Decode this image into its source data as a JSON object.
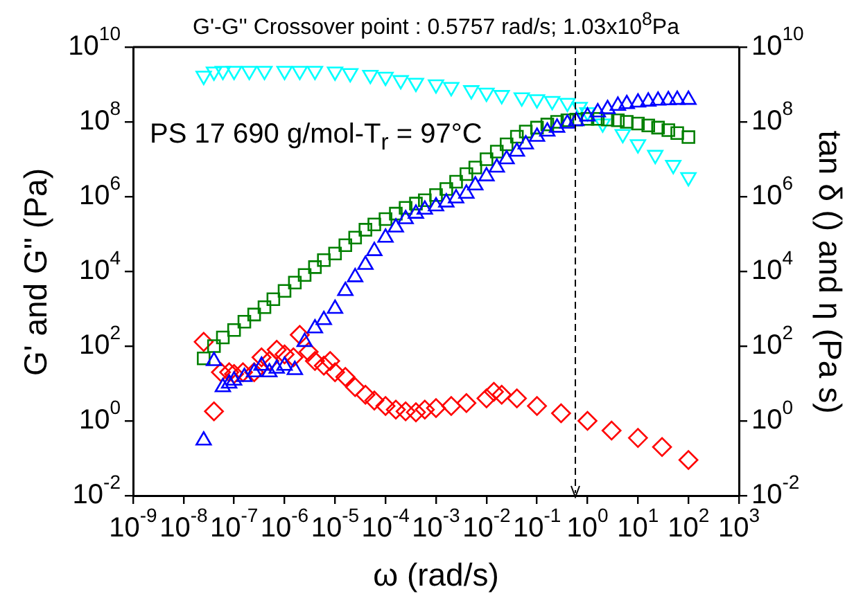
{
  "chart_data": {
    "type": "scatter",
    "title": "G'-G'' Crossover point : 0.5757 rad/s; 1.03x10$^{8}$Pa",
    "xlabel": "ω (rad/s)",
    "ylabel": "G' and G'' (Pa)",
    "y2label": "tan δ () and η (Pa s)",
    "annotations": [
      "PS 17 690 g/mol-T$_{r}$ = 97°C"
    ],
    "log": "xy",
    "grid": false,
    "legend": false,
    "xlim": [
      1e-09,
      1000
    ],
    "xticks": [
      {
        "value": 1e-09,
        "label": "10$^{-9}$"
      },
      {
        "value": 1e-08,
        "label": "10$^{-8}$"
      },
      {
        "value": 1e-07,
        "label": "10$^{-7}$"
      },
      {
        "value": 1e-06,
        "label": "10$^{-6}$"
      },
      {
        "value": 1e-05,
        "label": "10$^{-5}$"
      },
      {
        "value": 0.0001,
        "label": "10$^{-4}$"
      },
      {
        "value": 0.001,
        "label": "10$^{-3}$"
      },
      {
        "value": 0.01,
        "label": "10$^{-2}$"
      },
      {
        "value": 0.1,
        "label": "10$^{-1}$"
      },
      {
        "value": 1,
        "label": "10$^{0}$"
      },
      {
        "value": 10,
        "label": "10$^{1}$"
      },
      {
        "value": 100,
        "label": "10$^{2}$"
      },
      {
        "value": 1000,
        "label": "10$^{3}$"
      }
    ],
    "ylim": [
      0.01,
      10000000000.0
    ],
    "yticks": [
      {
        "value": 0.01,
        "label": "10$^{-2}$"
      },
      {
        "value": 1,
        "label": "10$^{0}$"
      },
      {
        "value": 100,
        "label": "10$^{2}$"
      },
      {
        "value": 10000.0,
        "label": "10$^{4}$"
      },
      {
        "value": 1000000.0,
        "label": "10$^{6}$"
      },
      {
        "value": 100000000.0,
        "label": "10$^{8}$"
      },
      {
        "value": 10000000000.0,
        "label": "10$^{10}$"
      }
    ],
    "ref_lines": [
      {
        "axis": "x",
        "value": 0.5757,
        "color": "#000000",
        "line_style": "dashed"
      }
    ],
    "series": [
      {
        "color": "#0000ff",
        "marker": "triangle",
        "x": [
          2.5e-08,
          4e-08,
          6e-08,
          8e-08,
          1e-07,
          1.6e-07,
          2.5e-07,
          3.5e-07,
          5e-07,
          7e-07,
          1e-06,
          1.6e-06,
          2.5e-06,
          4e-06,
          6e-06,
          1e-05,
          1.6e-05,
          2.5e-05,
          4e-05,
          6e-05,
          0.0001,
          0.00016,
          0.00025,
          0.0004,
          0.0006,
          0.001,
          0.0016,
          0.0025,
          0.004,
          0.006,
          0.01,
          0.016,
          0.025,
          0.04,
          0.06,
          0.1,
          0.16,
          0.25,
          0.4,
          0.6,
          1,
          1.6,
          2.5,
          4,
          6,
          10,
          16,
          25,
          40,
          60,
          100
        ],
        "values": [
          0.3,
          40,
          8,
          10,
          12,
          15,
          20,
          30,
          20,
          25,
          30,
          23,
          130,
          300,
          500,
          1000,
          3000,
          7000,
          15000,
          35000,
          80000,
          150000,
          250000,
          350000,
          450000,
          550000,
          700000,
          900000,
          1200000,
          2000000,
          3500000,
          6000000,
          10000000,
          16000000,
          25000000,
          40000000,
          55000000,
          70000000,
          90000000,
          105000000,
          140000000,
          180000000,
          220000000,
          270000000,
          300000000,
          330000000,
          350000000,
          370000000,
          380000000,
          390000000,
          390000000
        ]
      },
      {
        "color": "#008000",
        "marker": "square",
        "x": [
          2.5e-08,
          4e-08,
          6e-08,
          1e-07,
          1.6e-07,
          2.5e-07,
          4e-07,
          6e-07,
          1e-06,
          1.6e-06,
          2.5e-06,
          4e-06,
          6e-06,
          1e-05,
          1.6e-05,
          2.5e-05,
          4e-05,
          6e-05,
          0.0001,
          0.00016,
          0.00025,
          0.0004,
          0.0006,
          0.001,
          0.0016,
          0.0025,
          0.004,
          0.006,
          0.01,
          0.016,
          0.025,
          0.04,
          0.06,
          0.1,
          0.16,
          0.25,
          0.4,
          0.6,
          1,
          1.6,
          2.5,
          4,
          6,
          10,
          16,
          25,
          40,
          60,
          100
        ],
        "values": [
          47,
          100,
          170,
          270,
          450,
          700,
          1100,
          1800,
          3000,
          5000,
          8000,
          13000,
          20000,
          30000,
          50000,
          80000,
          130000,
          180000,
          250000,
          350000,
          500000,
          650000,
          800000,
          1100000,
          1600000,
          2500000,
          4000000,
          6000000,
          10000000,
          16000000,
          25000000,
          40000000,
          55000000,
          70000000,
          85000000,
          100000000,
          110000000,
          115000000,
          120000000,
          120000000,
          115000000,
          110000000,
          100000000,
          90000000,
          80000000,
          70000000,
          60000000,
          50000000,
          39000000
        ]
      },
      {
        "color": "#ff0000",
        "marker": "diamond",
        "x": [
          2.5e-08,
          4e-08,
          5.5e-08,
          8e-08,
          1e-07,
          1.5e-07,
          2.5e-07,
          3.5e-07,
          5e-07,
          7e-07,
          1e-06,
          1.5e-06,
          2e-06,
          3e-06,
          4e-06,
          6e-06,
          8e-06,
          1e-05,
          1.6e-05,
          2.5e-05,
          4e-05,
          6e-05,
          0.0001,
          0.00016,
          0.00025,
          0.0004,
          0.0006,
          0.001,
          0.002,
          0.004,
          0.01,
          0.014,
          0.02,
          0.04,
          0.1,
          0.3,
          1,
          3,
          10,
          30,
          100
        ],
        "values": [
          130,
          1.8,
          20,
          20,
          18,
          20,
          20,
          50,
          40,
          80,
          60,
          50,
          200,
          70,
          40,
          30,
          40,
          20,
          15,
          8,
          5,
          3.5,
          2.5,
          2,
          1.8,
          1.7,
          2,
          2.2,
          2.5,
          3,
          4,
          6,
          5,
          4,
          2.5,
          1.6,
          1,
          0.55,
          0.35,
          0.2,
          0.09
        ]
      },
      {
        "color": "#00ffff",
        "marker": "triangle-down",
        "x": [
          2.5e-08,
          4e-08,
          6e-08,
          1e-07,
          2e-07,
          4e-07,
          1e-06,
          2e-06,
          4e-06,
          1e-05,
          2e-05,
          5e-05,
          0.0001,
          0.0002,
          0.0004,
          0.001,
          0.002,
          0.005,
          0.01,
          0.02,
          0.05,
          0.1,
          0.2,
          0.4,
          0.7,
          1,
          2,
          5,
          10,
          22,
          50,
          100
        ],
        "values": [
          1700000000,
          2200000000,
          2300000000,
          2300000000,
          2300000000,
          2300000000,
          2300000000,
          2300000000,
          2300000000,
          2200000000,
          2000000000,
          1800000000,
          1600000000,
          1300000000,
          1100000000,
          1000000000,
          850000000,
          700000000,
          600000000,
          520000000,
          450000000,
          400000000,
          360000000,
          320000000,
          250000000,
          180000000,
          90000000,
          47000000,
          25000000,
          13000000,
          7000000,
          3300000
        ]
      }
    ]
  }
}
